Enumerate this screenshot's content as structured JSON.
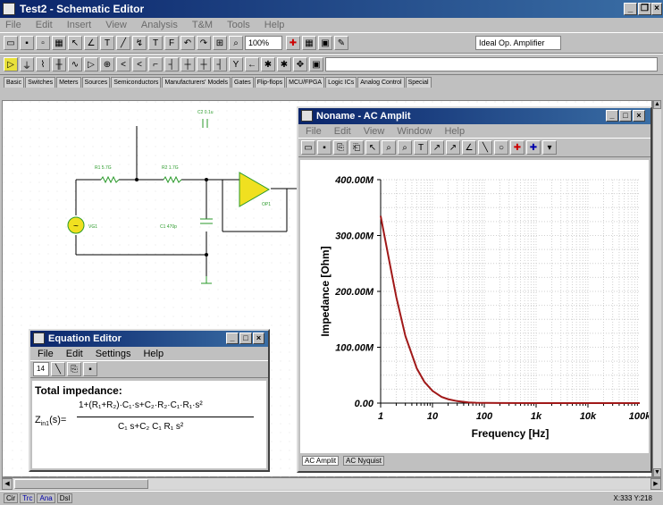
{
  "app": {
    "title": "Test2 - Schematic Editor"
  },
  "main_menu": [
    "File",
    "Edit",
    "Insert",
    "View",
    "Analysis",
    "T&M",
    "Tools",
    "Help"
  ],
  "toolbar": {
    "zoom": "100%",
    "component_select": "Ideal Op. Amplifier"
  },
  "component_tabs": [
    "Basic",
    "Switches",
    "Meters",
    "Sources",
    "Semiconductors",
    "Manufacturers' Models",
    "Gates",
    "Flip-flops",
    "MCU/FPGA",
    "Logic ICs",
    "Analog Control",
    "Special"
  ],
  "schematic": {
    "labels": {
      "r1": "R1 5.7G",
      "c2_top": "C2 0.1u",
      "r2": "R2 1.7G",
      "opamp": "OP1",
      "source": "VG1",
      "c1": "C1 470p"
    }
  },
  "ac_window": {
    "title": "Noname - AC Amplit",
    "menu": [
      "File",
      "Edit",
      "View",
      "Window",
      "Help"
    ],
    "tabs": [
      "AC Amplit",
      "AC Nyquist"
    ]
  },
  "chart_data": {
    "type": "line",
    "ylabel": "Impedance [Ohm]",
    "xlabel": "Frequency [Hz]",
    "xscale": "log",
    "xlim": [
      1,
      100000
    ],
    "ylim": [
      0,
      400000000
    ],
    "y_tick_labels": [
      "0.00",
      "100.00M",
      "200.00M",
      "300.00M",
      "400.00M"
    ],
    "x_tick_labels": [
      "1",
      "10",
      "100",
      "1k",
      "10k",
      "100k"
    ],
    "grid": true,
    "line_color": "#a01818",
    "series": [
      {
        "x": [
          1,
          1.5,
          2,
          3,
          5,
          7,
          10,
          15,
          20,
          30,
          50,
          70,
          100,
          200,
          1000,
          10000,
          100000
        ],
        "y": [
          335000000,
          250000000,
          190000000,
          120000000,
          62000000,
          38000000,
          22000000,
          11000000,
          7000000,
          3500000,
          1300000,
          700000,
          400000,
          150000,
          20000,
          2000,
          0
        ]
      }
    ]
  },
  "eq_editor": {
    "title": "Equation Editor",
    "menu": [
      "File",
      "Edit",
      "Settings",
      "Help"
    ],
    "font_size": "14",
    "heading": "Total impedance:",
    "lhs": "Z",
    "lhs_sub": "in1",
    "lhs_tail": "(s)=",
    "numerator": "1+(R₁+R₂)·C₁·s+C₂·R₂·C₁·R₁·s²",
    "denominator": "C₁ s+C₂ C₁ R₁ s²"
  },
  "status": {
    "items": [
      "Cir",
      "Trc",
      "Ana",
      "Dsl"
    ],
    "coords": "X:333 Y:218"
  }
}
